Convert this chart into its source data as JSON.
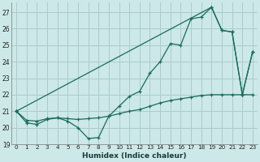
{
  "xlabel": "Humidex (Indice chaleur)",
  "bg_color": "#cce8e8",
  "grid_color": "#aacccc",
  "line_color": "#1a6b5a",
  "xlim": [
    -0.5,
    23.5
  ],
  "ylim": [
    19,
    27.6
  ],
  "xticks": [
    0,
    1,
    2,
    3,
    4,
    5,
    6,
    7,
    8,
    9,
    10,
    11,
    12,
    13,
    14,
    15,
    16,
    17,
    18,
    19,
    20,
    21,
    22,
    23
  ],
  "yticks": [
    19,
    20,
    21,
    22,
    23,
    24,
    25,
    26,
    27
  ],
  "series1_x": [
    0,
    1,
    2,
    3,
    4,
    5,
    6,
    7,
    8,
    9,
    10,
    11,
    12,
    13,
    14,
    15,
    16,
    17,
    18,
    19,
    20,
    21,
    22,
    23
  ],
  "series1_y": [
    21.0,
    20.3,
    20.2,
    20.5,
    20.6,
    20.4,
    20.0,
    19.35,
    19.4,
    20.7,
    21.3,
    21.9,
    22.2,
    23.3,
    24.0,
    25.1,
    25.0,
    26.6,
    26.7,
    27.3,
    25.9,
    25.8,
    22.0,
    24.6
  ],
  "series2_x": [
    0,
    19,
    20,
    21,
    22,
    23
  ],
  "series2_y": [
    21.0,
    27.3,
    25.9,
    25.8,
    22.0,
    24.6
  ],
  "series3_x": [
    0,
    1,
    2,
    3,
    4,
    5,
    6,
    7,
    8,
    9,
    10,
    11,
    12,
    13,
    14,
    15,
    16,
    17,
    18,
    19,
    20,
    21,
    22,
    23
  ],
  "series3_y": [
    21.0,
    20.45,
    20.4,
    20.55,
    20.6,
    20.55,
    20.5,
    20.55,
    20.6,
    20.7,
    20.85,
    21.0,
    21.1,
    21.3,
    21.5,
    21.65,
    21.75,
    21.85,
    21.95,
    22.0,
    22.0,
    22.0,
    22.0,
    22.0
  ]
}
